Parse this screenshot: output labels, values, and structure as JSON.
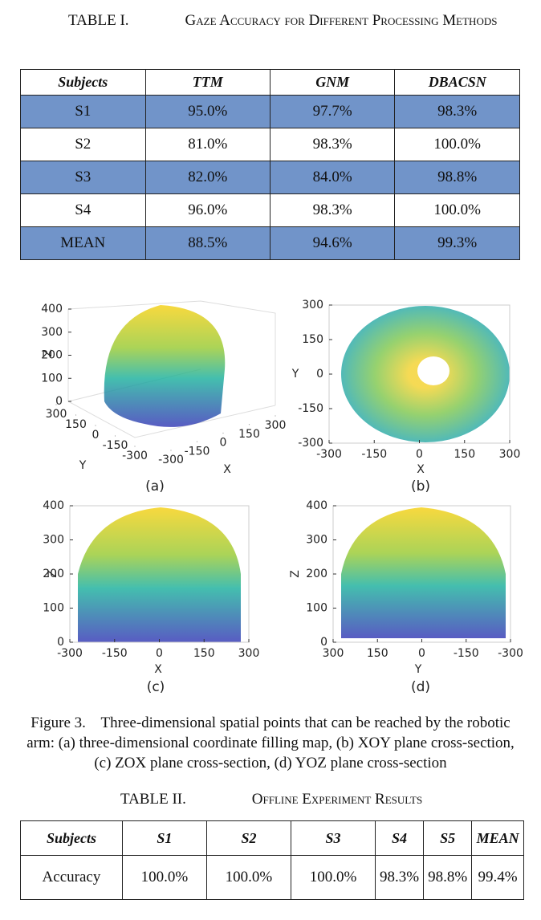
{
  "table1": {
    "label": "TABLE I.",
    "title": "Gaze Accuracy for Different Processing Methods",
    "header": [
      "Subjects",
      "TTM",
      "GNM",
      "DBACSN"
    ],
    "rows": [
      [
        "S1",
        "95.0%",
        "97.7%",
        "98.3%"
      ],
      [
        "S2",
        "81.0%",
        "98.3%",
        "100.0%"
      ],
      [
        "S3",
        "82.0%",
        "84.0%",
        "98.8%"
      ],
      [
        "S4",
        "96.0%",
        "98.3%",
        "100.0%"
      ],
      [
        "MEAN",
        "88.5%",
        "94.6%",
        "99.3%"
      ]
    ]
  },
  "figure": {
    "panels": [
      {
        "sublabel": "(a)",
        "axes": [
          {
            "label": "Z",
            "lim": [
              0,
              400
            ],
            "ticks": [
              0,
              100,
              200,
              300,
              400
            ]
          },
          {
            "label": "Y",
            "lim": [
              -300,
              300
            ],
            "ticks": [
              -300,
              -150,
              0,
              150,
              300
            ]
          },
          {
            "label": "X",
            "lim": [
              -300,
              300
            ],
            "ticks": [
              -300,
              -150,
              0,
              150,
              300
            ]
          }
        ]
      },
      {
        "sublabel": "(b)",
        "axes": [
          {
            "label": "X",
            "lim": [
              -300,
              300
            ],
            "ticks": [
              -300,
              -150,
              0,
              150,
              300
            ]
          },
          {
            "label": "Y",
            "lim": [
              -300,
              300
            ],
            "ticks": [
              -300,
              -150,
              0,
              150,
              300
            ]
          }
        ]
      },
      {
        "sublabel": "(c)",
        "axes": [
          {
            "label": "X",
            "lim": [
              -300,
              300
            ],
            "ticks": [
              -300,
              -150,
              0,
              150,
              300
            ]
          },
          {
            "label": "Z",
            "lim": [
              0,
              400
            ],
            "ticks": [
              0,
              100,
              200,
              300,
              400
            ]
          }
        ]
      },
      {
        "sublabel": "(d)",
        "axes": [
          {
            "label": "Y",
            "lim": [
              300,
              -300
            ],
            "ticks": [
              300,
              150,
              0,
              -150,
              -300
            ]
          },
          {
            "label": "Z",
            "lim": [
              0,
              400
            ],
            "ticks": [
              0,
              100,
              200,
              300,
              400
            ]
          }
        ]
      }
    ],
    "caption": "Figure 3.    Three-dimensional spatial points that can be reached by the robotic arm: (a) three-dimensional coordinate filling map, (b) XOY plane cross-section, (c) ZOX plane cross-section, (d) YOZ plane cross-section"
  },
  "table2": {
    "label": "TABLE II.",
    "title": "Offline Experiment Results",
    "header": [
      "Subjects",
      "S1",
      "S2",
      "S3",
      "S4",
      "S5",
      "MEAN"
    ],
    "rows": [
      [
        "Accuracy",
        "100.0%",
        "100.0%",
        "100.0%",
        "98.3%",
        "98.8%",
        "99.4%"
      ]
    ]
  }
}
